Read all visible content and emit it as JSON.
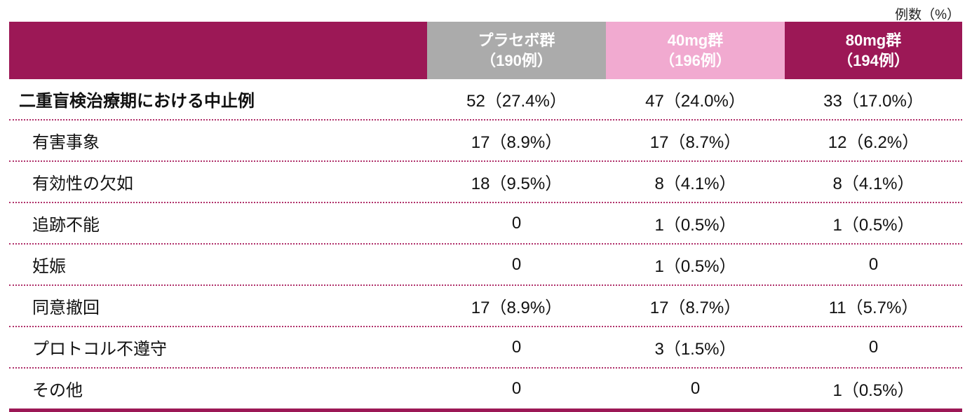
{
  "unit_label": "例数（%）",
  "colors": {
    "label_header": "#9c1856",
    "placebo": "#ababab",
    "dose40": "#f1aad0",
    "dose80": "#9c1856"
  },
  "columns": [
    {
      "name": "プラセボ群",
      "n": "（190例）",
      "color": "#ababab"
    },
    {
      "name": "40mg群",
      "n": "（196例）",
      "color": "#f1aad0"
    },
    {
      "name": "80mg群",
      "n": "（194例）",
      "color": "#9c1856"
    }
  ],
  "rows": [
    {
      "label": "二重盲検治療期における中止例",
      "values": [
        "52（27.4%）",
        "47（24.0%）",
        "33（17.0%）"
      ]
    },
    {
      "label": "有害事象",
      "values": [
        "17（8.9%）",
        "17（8.7%）",
        "12（6.2%）"
      ]
    },
    {
      "label": "有効性の欠如",
      "values": [
        "18（9.5%）",
        "8（4.1%）",
        "8（4.1%）"
      ]
    },
    {
      "label": "追跡不能",
      "values": [
        "0",
        "1（0.5%）",
        "1（0.5%）"
      ]
    },
    {
      "label": "妊娠",
      "values": [
        "0",
        "1（0.5%）",
        "0"
      ]
    },
    {
      "label": "同意撤回",
      "values": [
        "17（8.9%）",
        "17（8.7%）",
        "11（5.7%）"
      ]
    },
    {
      "label": "プロトコル不遵守",
      "values": [
        "0",
        "3（1.5%）",
        "0"
      ]
    },
    {
      "label": "その他",
      "values": [
        "0",
        "0",
        "1（0.5%）"
      ]
    }
  ]
}
